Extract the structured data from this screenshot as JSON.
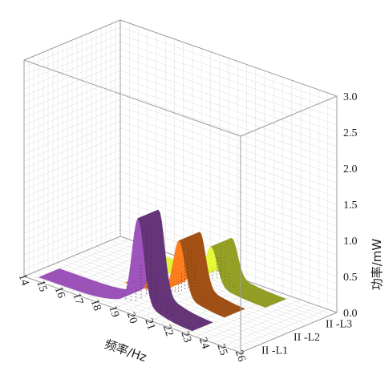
{
  "chart_data": {
    "type": "surface3d",
    "title": "",
    "xlabel": "频率/Hz",
    "zlabel": "功率/mW",
    "x_ticks": [
      "14",
      "15",
      "16",
      "17",
      "18",
      "19",
      "20",
      "21",
      "22",
      "23",
      "24",
      "25",
      "26"
    ],
    "z_ticks": [
      "0.0",
      "0.5",
      "1.0",
      "1.5",
      "2.0",
      "2.5",
      "3.0"
    ],
    "y_ticks": [
      "II -L1",
      "II -L2",
      "II -L3"
    ],
    "xlim": [
      14,
      26
    ],
    "zlim": [
      0,
      3.0
    ],
    "grid": true,
    "series": [
      {
        "name": "II -L1",
        "color": "#8e4aa8",
        "x_range": [
          14.5,
          23.0
        ],
        "peak_frequency": 20.0,
        "peak_power": 1.3
      },
      {
        "name": "II -L2",
        "color": "#e2701c",
        "x_range": [
          17.5,
          23.0
        ],
        "peak_frequency": 20.5,
        "peak_power": 0.85
      },
      {
        "name": "II -L3",
        "color": "#cfe033",
        "x_range": [
          16.5,
          23.5
        ],
        "peak_frequency": 20.5,
        "peak_power": 0.58
      }
    ]
  }
}
